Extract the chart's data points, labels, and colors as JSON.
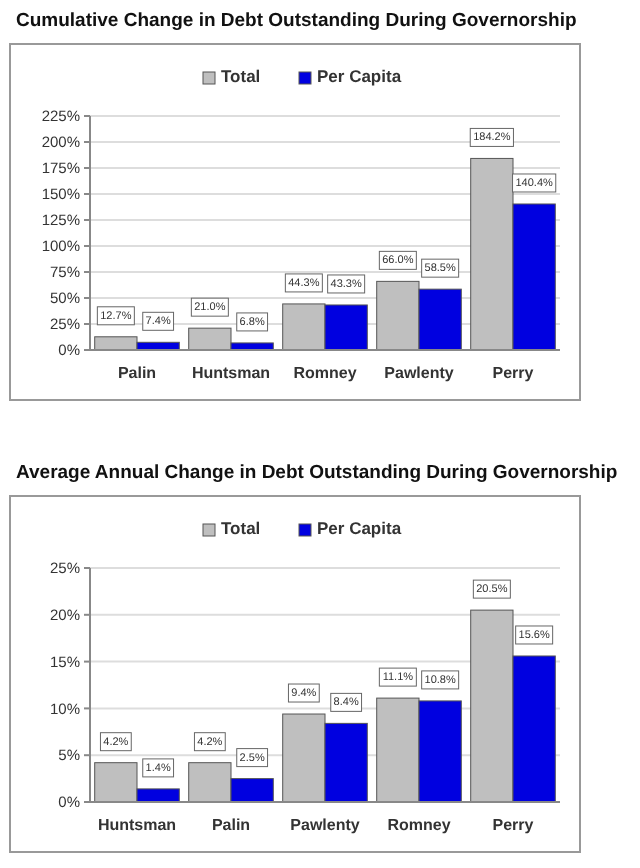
{
  "chart_data": [
    {
      "type": "bar",
      "title": "Cumulative Change in Debt Outstanding During Governorship",
      "categories": [
        "Palin",
        "Huntsman",
        "Romney",
        "Pawlenty",
        "Perry"
      ],
      "series": [
        {
          "name": "Total",
          "color": "#bfbfbf",
          "values": [
            12.7,
            21.0,
            44.3,
            66.0,
            184.2
          ],
          "value_labels": [
            "12.7%",
            "21.0%",
            "44.3%",
            "66.0%",
            "184.2%"
          ]
        },
        {
          "name": "Per Capita",
          "color": "#0000e0",
          "values": [
            7.4,
            6.8,
            43.3,
            58.5,
            140.4
          ],
          "value_labels": [
            "7.4%",
            "6.8%",
            "43.3%",
            "58.5%",
            "140.4%"
          ]
        }
      ],
      "ylim": [
        0,
        225
      ],
      "yticks": [
        {
          "value": 0,
          "label": "0%"
        },
        {
          "value": 25,
          "label": "25%"
        },
        {
          "value": 50,
          "label": "50%"
        },
        {
          "value": 75,
          "label": "75%"
        },
        {
          "value": 100,
          "label": "100%"
        },
        {
          "value": 125,
          "label": "125%"
        },
        {
          "value": 150,
          "label": "150%"
        },
        {
          "value": 175,
          "label": "175%"
        },
        {
          "value": 200,
          "label": "200%"
        },
        {
          "value": 225,
          "label": "225%"
        }
      ],
      "grid": "y",
      "legend": "top"
    },
    {
      "type": "bar",
      "title": "Average Annual Change in Debt Outstanding During Governorship",
      "categories": [
        "Huntsman",
        "Palin",
        "Pawlenty",
        "Romney",
        "Perry"
      ],
      "series": [
        {
          "name": "Total",
          "color": "#bfbfbf",
          "values": [
            4.2,
            4.2,
            9.4,
            11.1,
            20.5
          ],
          "value_labels": [
            "4.2%",
            "4.2%",
            "9.4%",
            "11.1%",
            "20.5%"
          ]
        },
        {
          "name": "Per Capita",
          "color": "#0000e0",
          "values": [
            1.4,
            2.5,
            8.4,
            10.8,
            15.6
          ],
          "value_labels": [
            "1.4%",
            "2.5%",
            "8.4%",
            "10.8%",
            "15.6%"
          ]
        }
      ],
      "ylim": [
        0,
        25
      ],
      "yticks": [
        {
          "value": 0,
          "label": "0%"
        },
        {
          "value": 5,
          "label": "5%"
        },
        {
          "value": 10,
          "label": "10%"
        },
        {
          "value": 15,
          "label": "15%"
        },
        {
          "value": 20,
          "label": "20%"
        },
        {
          "value": 25,
          "label": "25%"
        }
      ],
      "grid": "y",
      "legend": "top"
    }
  ]
}
